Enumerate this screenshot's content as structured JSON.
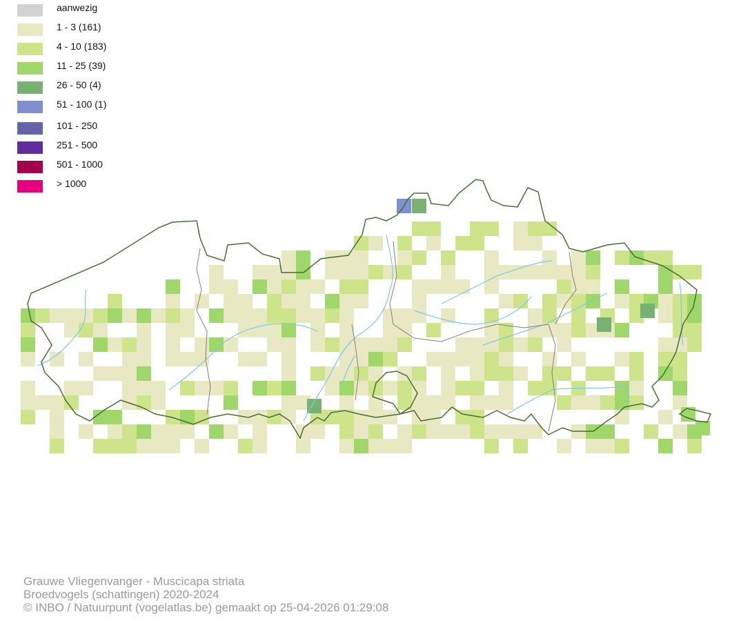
{
  "legend": [
    {
      "label": "aanwezig",
      "color": "#d3d3d3"
    },
    {
      "label": "1 - 3 (161)",
      "color": "#e8e9c2"
    },
    {
      "label": "4 - 10 (183)",
      "color": "#cde48b"
    },
    {
      "label": "11 - 25 (39)",
      "color": "#9fd76a"
    },
    {
      "label": "26 - 50 (4)",
      "color": "#79b173"
    },
    {
      "label": "51 - 100 (1)",
      "color": "#7f8fd0"
    },
    {
      "label": "101 - 250",
      "color": "#6464a8"
    },
    {
      "label": "251 - 500",
      "color": "#622c9c"
    },
    {
      "label": "501 - 1000",
      "color": "#a5004f"
    },
    {
      "label": "> 1000",
      "color": "#e5007e"
    }
  ],
  "map": {
    "border_color": "#4a6b35",
    "province_border_color": "#8a7a7a",
    "river_color": "#7ec8e3"
  },
  "footer": {
    "line1": "Grauwe Vliegenvanger - Muscicapa striata",
    "line2": "Broedvogels (schattingen) 2020-2024",
    "line3": "© INBO / Natuurpunt (vogelatlas.be) gemaakt op 25-04-2026 01:29:08"
  }
}
